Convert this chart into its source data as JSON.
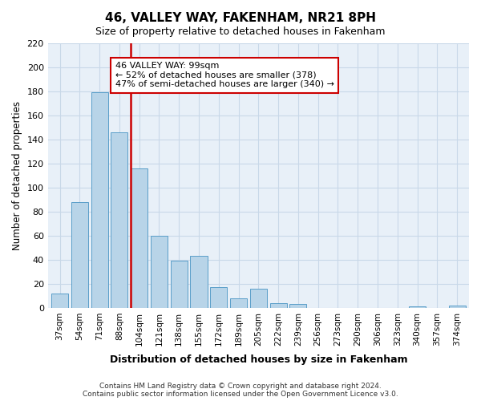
{
  "title": "46, VALLEY WAY, FAKENHAM, NR21 8PH",
  "subtitle": "Size of property relative to detached houses in Fakenham",
  "xlabel": "Distribution of detached houses by size in Fakenham",
  "ylabel": "Number of detached properties",
  "bar_labels": [
    "37sqm",
    "54sqm",
    "71sqm",
    "88sqm",
    "104sqm",
    "121sqm",
    "138sqm",
    "155sqm",
    "172sqm",
    "189sqm",
    "205sqm",
    "222sqm",
    "239sqm",
    "256sqm",
    "273sqm",
    "290sqm",
    "306sqm",
    "323sqm",
    "340sqm",
    "357sqm",
    "374sqm"
  ],
  "bar_values": [
    12,
    88,
    179,
    146,
    116,
    60,
    39,
    43,
    17,
    8,
    16,
    4,
    3,
    0,
    0,
    0,
    0,
    0,
    1,
    0,
    2
  ],
  "bar_color": "#b8d4e8",
  "bar_edge_color": "#5a9ec9",
  "vline_color": "#cc0000",
  "vline_x": 3.575,
  "ylim": [
    0,
    220
  ],
  "yticks": [
    0,
    20,
    40,
    60,
    80,
    100,
    120,
    140,
    160,
    180,
    200,
    220
  ],
  "annotation_title": "46 VALLEY WAY: 99sqm",
  "annotation_line1": "← 52% of detached houses are smaller (378)",
  "annotation_line2": "47% of semi-detached houses are larger (340) →",
  "annotation_box_color": "#ffffff",
  "annotation_box_edge": "#cc0000",
  "footer_line1": "Contains HM Land Registry data © Crown copyright and database right 2024.",
  "footer_line2": "Contains public sector information licensed under the Open Government Licence v3.0.",
  "grid_color": "#c8d8e8",
  "background_color": "#e8f0f8"
}
